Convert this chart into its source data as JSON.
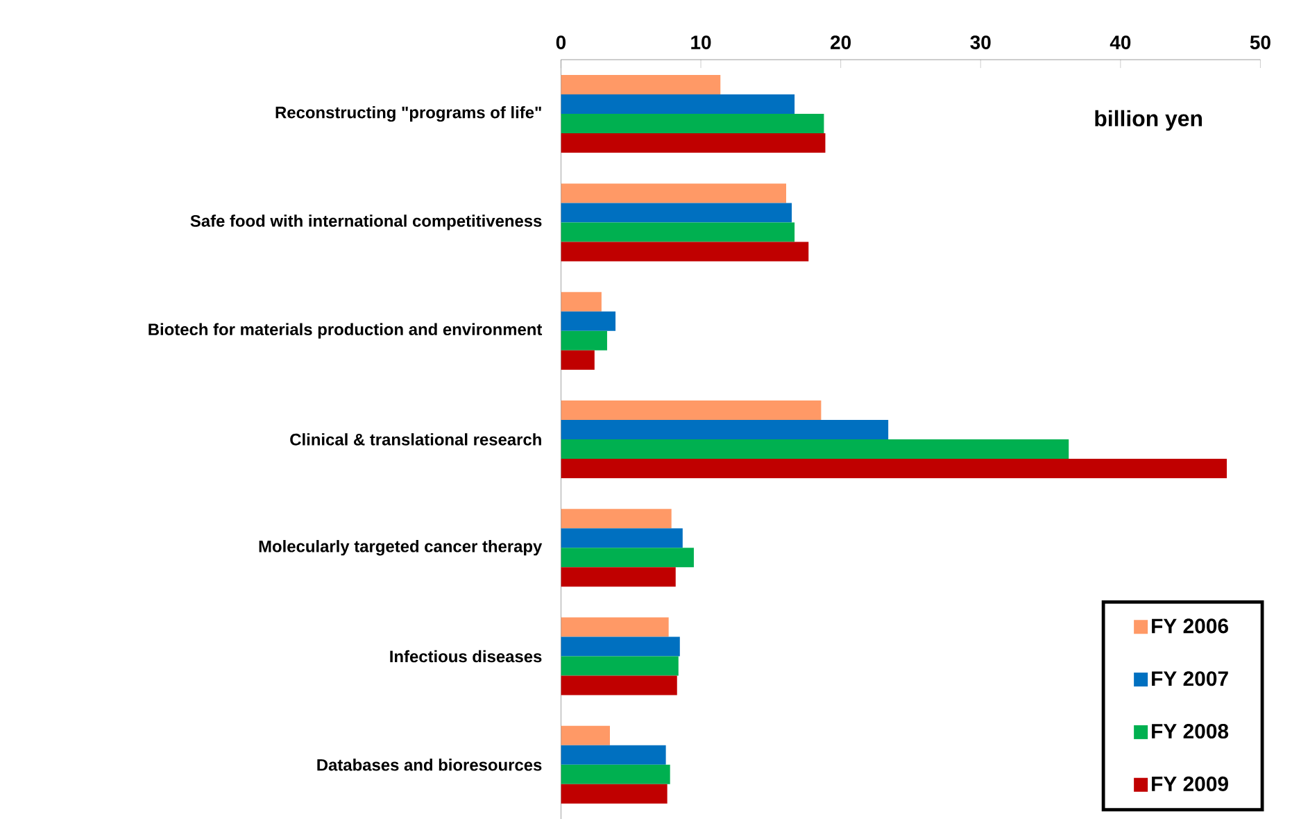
{
  "chart_data": {
    "type": "bar",
    "orientation": "horizontal",
    "xlabel": "billion yen",
    "categories": [
      "Reconstructing \"programs of life\"",
      "Safe food with international competitiveness",
      "Biotech for materials production and environment",
      "Clinical & translational research",
      "Molecularly targeted cancer therapy",
      "Infectious diseases",
      "Databases and bioresources"
    ],
    "series": [
      {
        "name": "FY 2006",
        "color": "#ff9966",
        "values": [
          11.4,
          16.1,
          2.9,
          18.6,
          7.9,
          7.7,
          3.5
        ]
      },
      {
        "name": "FY 2007",
        "color": "#0070c0",
        "values": [
          16.7,
          16.5,
          3.9,
          23.4,
          8.7,
          8.5,
          7.5
        ]
      },
      {
        "name": "FY 2008",
        "color": "#00b050",
        "values": [
          18.8,
          16.7,
          3.3,
          36.3,
          9.5,
          8.4,
          7.8
        ]
      },
      {
        "name": "FY 2009",
        "color": "#c00000",
        "values": [
          18.9,
          17.7,
          2.4,
          47.6,
          8.2,
          8.3,
          7.6
        ]
      }
    ],
    "xlim": [
      0,
      50
    ],
    "xticks": [
      0,
      10,
      20,
      30,
      40,
      50
    ],
    "legend": "bottom right"
  }
}
